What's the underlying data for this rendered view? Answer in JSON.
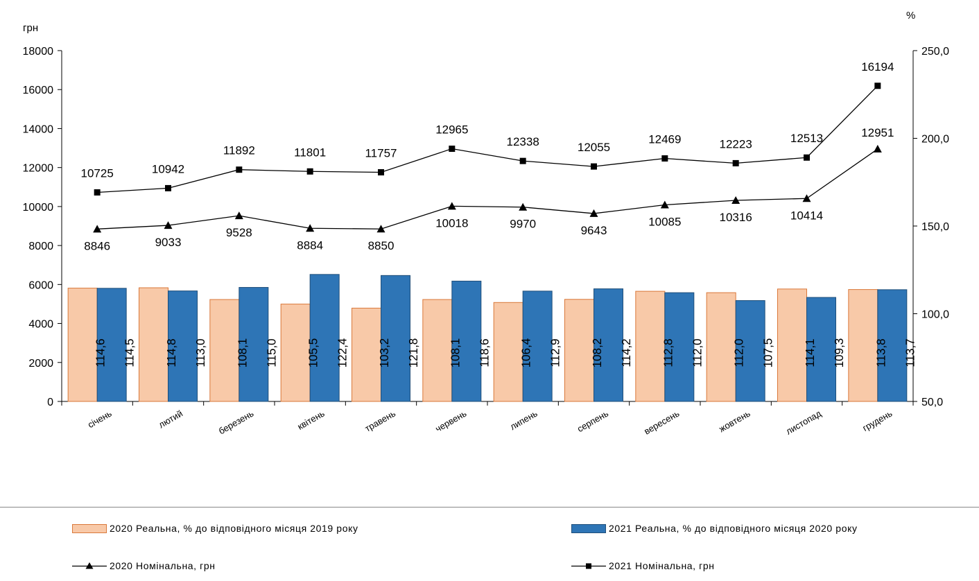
{
  "chart_data": {
    "type": "bar+line",
    "left_axis": {
      "unit": "грн",
      "min": 0,
      "max": 18000,
      "step": 2000,
      "ticks": [
        "0",
        "2000",
        "4000",
        "6000",
        "8000",
        "10000",
        "12000",
        "14000",
        "16000",
        "18000"
      ]
    },
    "right_axis": {
      "unit": "%",
      "min": 50,
      "max": 250,
      "step": 50,
      "ticks": [
        "50,0",
        "100,0",
        "150,0",
        "200,0",
        "250,0"
      ]
    },
    "categories": [
      "січень",
      "лютий",
      "березень",
      "квітень",
      "травень",
      "червень",
      "липень",
      "серпень",
      "вересень",
      "жовтень",
      "листопад",
      "грудень"
    ],
    "series": [
      {
        "name": "2020 Реальна, % до відповідного місяця 2019 року",
        "type": "bar",
        "axis": "right",
        "color": "#f8c9a8",
        "border": "#d9783a",
        "values": [
          114.6,
          114.8,
          108.1,
          105.5,
          103.2,
          108.1,
          106.4,
          108.2,
          112.8,
          112.0,
          114.1,
          113.8
        ],
        "labels": [
          "114,6",
          "114,8",
          "108,1",
          "105,5",
          "103,2",
          "108,1",
          "106,4",
          "108,2",
          "112,8",
          "112,0",
          "114,1",
          "113,8"
        ]
      },
      {
        "name": "2021 Реальна, % до відповідного місяця 2020 року",
        "type": "bar",
        "axis": "right",
        "color": "#2e75b6",
        "border": "#1f4e79",
        "values": [
          114.5,
          113.0,
          115.0,
          122.4,
          121.8,
          118.6,
          112.9,
          114.2,
          112.0,
          107.5,
          109.3,
          113.7
        ],
        "labels": [
          "114,5",
          "113,0",
          "115,0",
          "122,4",
          "121,8",
          "118,6",
          "112,9",
          "114,2",
          "112,0",
          "107,5",
          "109,3",
          "113,7"
        ]
      },
      {
        "name": "2020 Номінальна, грн",
        "type": "line",
        "axis": "left",
        "marker": "triangle",
        "color": "#000000",
        "values": [
          8846,
          9033,
          9528,
          8884,
          8850,
          10018,
          9970,
          9643,
          10085,
          10316,
          10414,
          12951
        ],
        "labels": [
          "8846",
          "9033",
          "9528",
          "8884",
          "8850",
          "10018",
          "9970",
          "9643",
          "10085",
          "10316",
          "10414",
          "12951"
        ]
      },
      {
        "name": "2021 Номінальна, грн",
        "type": "line",
        "axis": "left",
        "marker": "square",
        "color": "#000000",
        "values": [
          10725,
          10942,
          11892,
          11801,
          11757,
          12965,
          12338,
          12055,
          12469,
          12223,
          12513,
          16194
        ],
        "labels": [
          "10725",
          "10942",
          "11892",
          "11801",
          "11757",
          "12965",
          "12338",
          "12055",
          "12469",
          "12223",
          "12513",
          "16194"
        ]
      }
    ],
    "legend_position": "bottom",
    "grid": false
  }
}
